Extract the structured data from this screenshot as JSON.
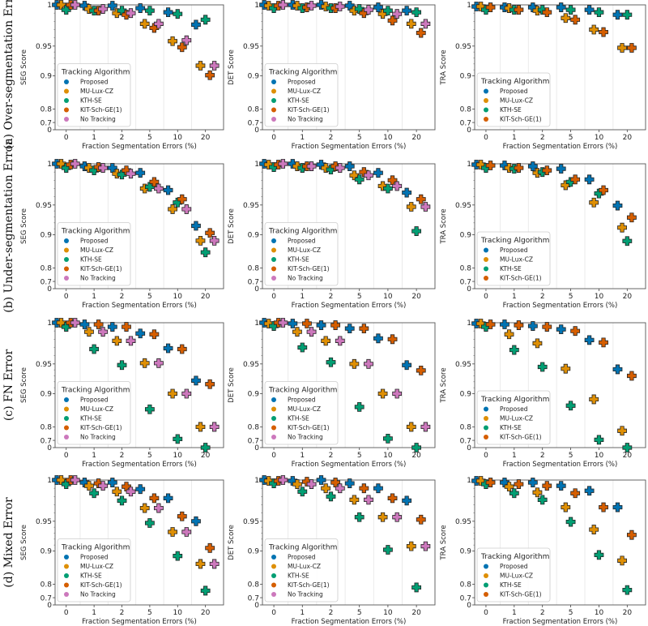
{
  "figure": {
    "row_labels": [
      "(a) Over-segmentation Error",
      "(b) Under-segmentation Error",
      "(c) FN Error",
      "(d) Mixed Error"
    ],
    "series_colors": {
      "Proposed": "#0173b2",
      "MU-Lux-CZ": "#de8f05",
      "KTH-SE": "#029e73",
      "KIT-Sch-GE(1)": "#d55e00",
      "No Tracking": "#cc78bc"
    }
  },
  "chart_data": [
    {
      "row": 0,
      "col": 0,
      "type": "scatter",
      "ylabel": "SEG Score",
      "xlabel": "Fraction Segmentation Errors (%)",
      "categories": [
        "0",
        "1",
        "2",
        "5",
        "10",
        "20"
      ],
      "yticks": [
        "1",
        "0.95",
        "0.9",
        "0.8",
        "0.7",
        "0"
      ],
      "legend_title": "Tracking Algorithm",
      "legend_placement": "lower-left",
      "series": [
        {
          "name": "Proposed",
          "values": [
            1.0,
            0.999,
            0.999,
            0.996,
            0.991,
            0.976
          ]
        },
        {
          "name": "MU-Lux-CZ",
          "values": [
            1.0,
            0.995,
            0.99,
            0.977,
            0.956,
            0.917
          ]
        },
        {
          "name": "KTH-SE",
          "values": [
            0.994,
            0.993,
            0.993,
            0.993,
            0.989,
            0.982
          ]
        },
        {
          "name": "KIT-Sch-GE(1)",
          "values": [
            1.0,
            0.993,
            0.988,
            0.972,
            0.948,
            0.901
          ]
        },
        {
          "name": "No Tracking",
          "values": [
            1.0,
            0.995,
            0.99,
            0.977,
            0.957,
            0.917
          ]
        }
      ]
    },
    {
      "row": 0,
      "col": 1,
      "type": "scatter",
      "ylabel": "DET Score",
      "xlabel": "Fraction Segmentation Errors (%)",
      "categories": [
        "0",
        "1",
        "2",
        "5",
        "10",
        "20"
      ],
      "yticks": [
        "1",
        "0.95",
        "0.9",
        "0.8",
        "0.7",
        "0"
      ],
      "legend_title": "Tracking Algorithm",
      "legend_placement": "lower-left",
      "series": [
        {
          "name": "Proposed",
          "values": [
            1.0,
            1.0,
            1.0,
            0.999,
            0.997,
            0.993
          ]
        },
        {
          "name": "MU-Lux-CZ",
          "values": [
            0.999,
            0.999,
            0.998,
            0.993,
            0.989,
            0.977
          ]
        },
        {
          "name": "KTH-SE",
          "values": [
            0.996,
            0.996,
            0.996,
            0.995,
            0.993,
            0.991
          ]
        },
        {
          "name": "KIT-Sch-GE(1)",
          "values": [
            0.999,
            0.997,
            0.996,
            0.99,
            0.981,
            0.966
          ]
        },
        {
          "name": "No Tracking",
          "values": [
            1.0,
            0.999,
            0.998,
            0.994,
            0.989,
            0.977
          ]
        }
      ]
    },
    {
      "row": 0,
      "col": 2,
      "type": "scatter",
      "ylabel": "TRA Score",
      "xlabel": "Fraction Segmentation Errors (%)",
      "categories": [
        "0",
        "1",
        "2",
        "5",
        "10",
        "20"
      ],
      "yticks": [
        "1",
        "0.95",
        "0.9",
        "0.8",
        "0.7",
        "0"
      ],
      "legend_title": "Tracking Algorithm",
      "legend_placement": "lower-left",
      "series": [
        {
          "name": "Proposed",
          "values": [
            0.998,
            0.997,
            0.997,
            0.997,
            0.994,
            0.988
          ]
        },
        {
          "name": "MU-Lux-CZ",
          "values": [
            0.998,
            0.996,
            0.993,
            0.984,
            0.97,
            0.947
          ]
        },
        {
          "name": "KTH-SE",
          "values": [
            0.994,
            0.994,
            0.994,
            0.994,
            0.991,
            0.988
          ]
        },
        {
          "name": "KIT-Sch-GE(1)",
          "values": [
            0.997,
            0.994,
            0.991,
            0.982,
            0.967,
            0.947
          ]
        }
      ]
    },
    {
      "row": 1,
      "col": 0,
      "type": "scatter",
      "ylabel": "SEG Score",
      "xlabel": "Fraction Segmentation Errors (%)",
      "categories": [
        "0",
        "1",
        "2",
        "5",
        "10",
        "20"
      ],
      "yticks": [
        "1",
        "0.95",
        "0.9",
        "0.8",
        "0.7",
        "0"
      ],
      "legend_title": "Tracking Algorithm",
      "legend_placement": "lower-left",
      "series": [
        {
          "name": "Proposed",
          "values": [
            1.0,
            0.997,
            0.995,
            0.989,
            0.968,
            0.915
          ]
        },
        {
          "name": "MU-Lux-CZ",
          "values": [
            1.0,
            0.995,
            0.988,
            0.97,
            0.943,
            0.882
          ]
        },
        {
          "name": "KTH-SE",
          "values": [
            0.995,
            0.992,
            0.987,
            0.972,
            0.953,
            0.847
          ]
        },
        {
          "name": "KIT-Sch-GE(1)",
          "values": [
            0.999,
            0.996,
            0.992,
            0.978,
            0.957,
            0.903
          ]
        },
        {
          "name": "No Tracking",
          "values": [
            1.0,
            0.995,
            0.988,
            0.97,
            0.943,
            0.882
          ]
        }
      ]
    },
    {
      "row": 1,
      "col": 1,
      "type": "scatter",
      "ylabel": "DET Score",
      "xlabel": "Fraction Segmentation Errors (%)",
      "categories": [
        "0",
        "1",
        "2",
        "5",
        "10",
        "20"
      ],
      "yticks": [
        "1",
        "0.95",
        "0.9",
        "0.8",
        "0.7",
        "0"
      ],
      "legend_title": "Tracking Algorithm",
      "legend_placement": "lower-left",
      "series": [
        {
          "name": "Proposed",
          "values": [
            1.0,
            1.0,
            0.999,
            0.997,
            0.989,
            0.965
          ]
        },
        {
          "name": "MU-Lux-CZ",
          "values": [
            0.999,
            0.997,
            0.995,
            0.986,
            0.973,
            0.947
          ]
        },
        {
          "name": "KTH-SE",
          "values": [
            0.996,
            0.995,
            0.993,
            0.981,
            0.97,
            0.906
          ]
        },
        {
          "name": "KIT-Sch-GE(1)",
          "values": [
            0.999,
            0.997,
            0.997,
            0.99,
            0.98,
            0.957
          ]
        },
        {
          "name": "No Tracking",
          "values": [
            1.0,
            0.997,
            0.995,
            0.986,
            0.973,
            0.947
          ]
        }
      ]
    },
    {
      "row": 1,
      "col": 2,
      "type": "scatter",
      "ylabel": "TRA Score",
      "xlabel": "Fraction Segmentation Errors (%)",
      "categories": [
        "0",
        "1",
        "2",
        "5",
        "10",
        "20"
      ],
      "yticks": [
        "1",
        "0.95",
        "0.9",
        "0.8",
        "0.7",
        "0"
      ],
      "legend_title": "Tracking Algorithm",
      "legend_placement": "lower-left",
      "series": [
        {
          "name": "Proposed",
          "values": [
            0.999,
            0.998,
            0.997,
            0.994,
            0.981,
            0.949
          ]
        },
        {
          "name": "MU-Lux-CZ",
          "values": [
            0.999,
            0.995,
            0.989,
            0.974,
            0.953,
            0.912
          ]
        },
        {
          "name": "KTH-SE",
          "values": [
            0.995,
            0.994,
            0.99,
            0.978,
            0.964,
            0.881
          ]
        },
        {
          "name": "KIT-Sch-GE(1)",
          "values": [
            0.998,
            0.995,
            0.992,
            0.981,
            0.968,
            0.929
          ]
        }
      ]
    },
    {
      "row": 2,
      "col": 0,
      "type": "scatter",
      "ylabel": "SEG Score",
      "xlabel": "Fraction Segmentation Errors (%)",
      "categories": [
        "0",
        "1",
        "2",
        "5",
        "10",
        "20"
      ],
      "yticks": [
        "1",
        "0.95",
        "0.9",
        "0.8",
        "0.7",
        "0"
      ],
      "legend_title": "Tracking Algorithm",
      "legend_placement": "lower-left",
      "series": [
        {
          "name": "Proposed",
          "values": [
            1.0,
            0.998,
            0.995,
            0.987,
            0.969,
            0.922
          ]
        },
        {
          "name": "MU-Lux-CZ",
          "values": [
            1.0,
            0.989,
            0.978,
            0.951,
            0.9,
            0.8
          ]
        },
        {
          "name": "KTH-SE",
          "values": [
            0.995,
            0.968,
            0.948,
            0.853,
            0.71,
            0.0
          ]
        },
        {
          "name": "KIT-Sch-GE(1)",
          "values": [
            1.0,
            0.998,
            0.995,
            0.986,
            0.968,
            0.916
          ]
        },
        {
          "name": "No Tracking",
          "values": [
            1.0,
            0.989,
            0.978,
            0.951,
            0.9,
            0.8
          ]
        }
      ]
    },
    {
      "row": 2,
      "col": 1,
      "type": "scatter",
      "ylabel": "DET Score",
      "xlabel": "Fraction Segmentation Errors (%)",
      "categories": [
        "0",
        "1",
        "2",
        "5",
        "10",
        "20"
      ],
      "yticks": [
        "1",
        "0.95",
        "0.9",
        "0.8",
        "0.7",
        "0"
      ],
      "legend_title": "Tracking Algorithm",
      "legend_placement": "lower-left",
      "series": [
        {
          "name": "Proposed",
          "values": [
            1.0,
            0.999,
            0.997,
            0.993,
            0.981,
            0.948
          ]
        },
        {
          "name": "MU-Lux-CZ",
          "values": [
            0.999,
            0.989,
            0.978,
            0.95,
            0.9,
            0.8
          ]
        },
        {
          "name": "KTH-SE",
          "values": [
            0.996,
            0.97,
            0.952,
            0.86,
            0.713,
            0.0
          ]
        },
        {
          "name": "KIT-Sch-GE(1)",
          "values": [
            1.0,
            0.999,
            0.997,
            0.993,
            0.98,
            0.939
          ]
        },
        {
          "name": "No Tracking",
          "values": [
            1.0,
            0.989,
            0.978,
            0.95,
            0.9,
            0.8
          ]
        }
      ]
    },
    {
      "row": 2,
      "col": 2,
      "type": "scatter",
      "ylabel": "TRA Score",
      "xlabel": "Fraction Segmentation Errors (%)",
      "categories": [
        "0",
        "1",
        "2",
        "5",
        "10",
        "20"
      ],
      "yticks": [
        "1",
        "0.95",
        "0.9",
        "0.8",
        "0.7",
        "0"
      ],
      "legend_title": "Tracking Algorithm",
      "legend_placement": "lower-left",
      "series": [
        {
          "name": "Proposed",
          "values": [
            0.999,
            0.998,
            0.996,
            0.992,
            0.979,
            0.941
          ]
        },
        {
          "name": "MU-Lux-CZ",
          "values": [
            0.999,
            0.986,
            0.975,
            0.942,
            0.883,
            0.771
          ]
        },
        {
          "name": "KTH-SE",
          "values": [
            0.995,
            0.967,
            0.945,
            0.864,
            0.704,
            0.0
          ]
        },
        {
          "name": "KIT-Sch-GE(1)",
          "values": [
            0.998,
            0.997,
            0.995,
            0.99,
            0.976,
            0.93
          ]
        }
      ]
    },
    {
      "row": 3,
      "col": 0,
      "type": "scatter",
      "ylabel": "SEG Score",
      "xlabel": "Fraction Segmentation Errors (%)",
      "categories": [
        "0",
        "1",
        "2",
        "5",
        "10",
        "20"
      ],
      "yticks": [
        "1",
        "0.95",
        "0.9",
        "0.8",
        "0.7",
        "0"
      ],
      "legend_title": "Tracking Algorithm",
      "legend_placement": "lower-left",
      "series": [
        {
          "name": "Proposed",
          "values": [
            1.0,
            0.997,
            0.997,
            0.989,
            0.978,
            0.95
          ]
        },
        {
          "name": "MU-Lux-CZ",
          "values": [
            1.0,
            0.993,
            0.986,
            0.966,
            0.932,
            0.861
          ]
        },
        {
          "name": "KTH-SE",
          "values": [
            0.995,
            0.984,
            0.975,
            0.947,
            0.885,
            0.752
          ]
        },
        {
          "name": "KIT-Sch-GE(1)",
          "values": [
            1.0,
            0.996,
            0.992,
            0.978,
            0.956,
            0.905
          ]
        },
        {
          "name": "No Tracking",
          "values": [
            1.0,
            0.993,
            0.986,
            0.966,
            0.932,
            0.861
          ]
        }
      ]
    },
    {
      "row": 3,
      "col": 1,
      "type": "scatter",
      "ylabel": "DET Score",
      "xlabel": "Fraction Segmentation Errors (%)",
      "categories": [
        "0",
        "1",
        "2",
        "5",
        "10",
        "20"
      ],
      "yticks": [
        "1",
        "0.95",
        "0.9",
        "0.8",
        "0.7",
        "0"
      ],
      "legend_title": "Tracking Algorithm",
      "legend_placement": "lower-left",
      "series": [
        {
          "name": "Proposed",
          "values": [
            1.0,
            0.999,
            1.0,
            0.996,
            0.99,
            0.975
          ]
        },
        {
          "name": "MU-Lux-CZ",
          "values": [
            0.999,
            0.995,
            0.99,
            0.976,
            0.955,
            0.908
          ]
        },
        {
          "name": "KTH-SE",
          "values": [
            0.996,
            0.986,
            0.98,
            0.955,
            0.902,
            0.776
          ]
        },
        {
          "name": "KIT-Sch-GE(1)",
          "values": [
            0.999,
            0.998,
            0.997,
            0.99,
            0.978,
            0.952
          ]
        },
        {
          "name": "No Tracking",
          "values": [
            1.0,
            0.995,
            0.99,
            0.976,
            0.955,
            0.908
          ]
        }
      ]
    },
    {
      "row": 3,
      "col": 2,
      "type": "scatter",
      "ylabel": "TRA Score",
      "xlabel": "Fraction Segmentation Errors (%)",
      "categories": [
        "0",
        "1",
        "2",
        "5",
        "10",
        "20"
      ],
      "yticks": [
        "1",
        "0.95",
        "0.9",
        "0.8",
        "0.7",
        "0"
      ],
      "legend_title": "Tracking Algorithm",
      "legend_placement": "lower-left",
      "series": [
        {
          "name": "Proposed",
          "values": [
            0.999,
            0.997,
            0.997,
            0.993,
            0.987,
            0.967
          ]
        },
        {
          "name": "MU-Lux-CZ",
          "values": [
            0.999,
            0.992,
            0.985,
            0.967,
            0.936,
            0.871
          ]
        },
        {
          "name": "KTH-SE",
          "values": [
            0.995,
            0.984,
            0.976,
            0.949,
            0.888,
            0.757
          ]
        },
        {
          "name": "KIT-Sch-GE(1)",
          "values": [
            0.997,
            0.995,
            0.993,
            0.984,
            0.967,
            0.927
          ]
        }
      ]
    }
  ]
}
